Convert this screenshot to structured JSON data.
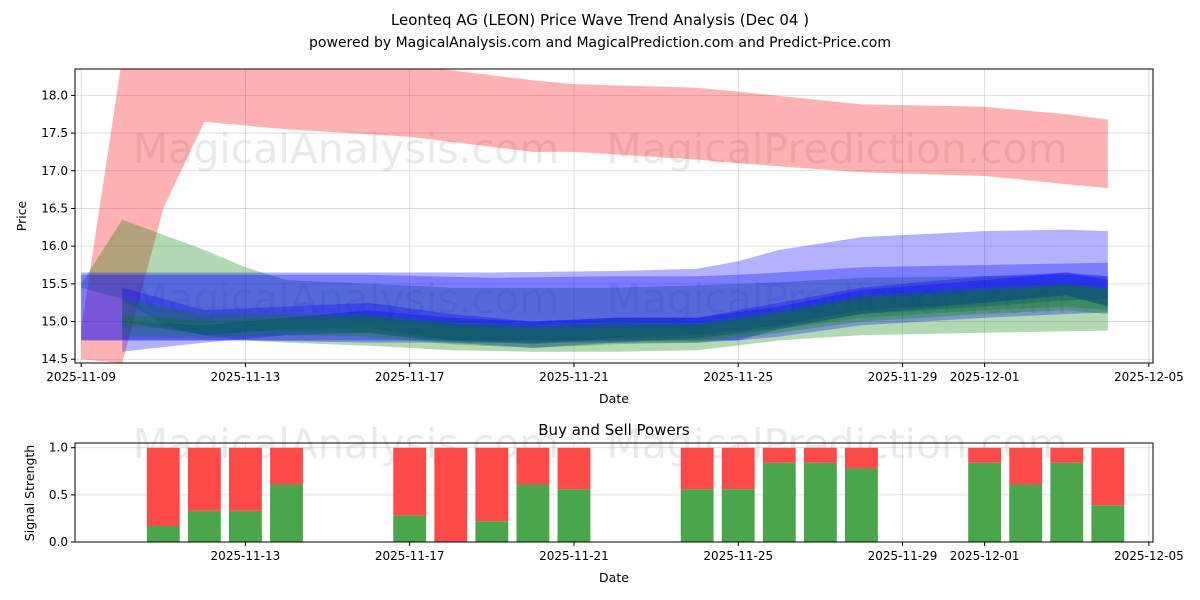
{
  "chart_data": [
    {
      "type": "area",
      "title": "Leonteq AG (LEON) Price Wave Trend Analysis (Dec 04 )",
      "subtitle": "powered by MagicalAnalysis.com and MagicalPrediction.com and Predict-Price.com",
      "xlabel": "Date",
      "ylabel": "Price",
      "xlim": [
        "2025-11-09",
        "2025-12-05"
      ],
      "ylim": [
        14.45,
        18.35
      ],
      "x_ticks": [
        "2025-11-09",
        "2025-11-13",
        "2025-11-17",
        "2025-11-21",
        "2025-11-25",
        "2025-11-29",
        "2025-12-01",
        "2025-12-05"
      ],
      "y_ticks": [
        14.5,
        15.0,
        15.5,
        16.0,
        16.5,
        17.0,
        17.5,
        18.0
      ],
      "watermarks": [
        "MagicalAnalysis.com",
        "MagicalPrediction.com"
      ],
      "series": [
        {
          "name": "red band",
          "color": "#ff0000",
          "opacity": 0.3,
          "x": [
            "2025-11-09",
            "2025-11-10",
            "2025-11-11",
            "2025-11-12",
            "2025-11-14",
            "2025-11-17",
            "2025-11-20",
            "2025-11-21",
            "2025-11-24",
            "2025-11-25",
            "2025-11-28",
            "2025-12-01",
            "2025-12-03",
            "2025-12-04"
          ],
          "upper": [
            14.9,
            18.5,
            18.5,
            18.5,
            18.45,
            18.4,
            18.2,
            18.15,
            18.1,
            18.05,
            17.88,
            17.85,
            17.75,
            17.68
          ],
          "lower": [
            14.5,
            14.45,
            16.5,
            17.65,
            17.55,
            17.45,
            17.25,
            17.25,
            17.15,
            17.1,
            16.98,
            16.93,
            16.82,
            16.77
          ]
        },
        {
          "name": "green wide band",
          "color": "#008000",
          "opacity": 0.3,
          "x": [
            "2025-11-09",
            "2025-11-10",
            "2025-11-11",
            "2025-11-12",
            "2025-11-13",
            "2025-11-14",
            "2025-11-16",
            "2025-11-18",
            "2025-11-20",
            "2025-11-22",
            "2025-11-24",
            "2025-11-26",
            "2025-11-28",
            "2025-12-01",
            "2025-12-03",
            "2025-12-04"
          ],
          "upper": [
            15.5,
            16.35,
            16.15,
            15.95,
            15.72,
            15.55,
            15.5,
            15.45,
            15.45,
            15.45,
            15.48,
            15.52,
            15.58,
            15.6,
            15.62,
            15.6
          ],
          "lower": [
            15.45,
            15.3,
            14.95,
            14.82,
            14.75,
            14.72,
            14.68,
            14.62,
            14.6,
            14.6,
            14.62,
            14.75,
            14.82,
            14.85,
            14.87,
            14.88
          ]
        },
        {
          "name": "blue wide band",
          "color": "#0000ff",
          "opacity": 0.3,
          "x": [
            "2025-11-09",
            "2025-11-11",
            "2025-11-13",
            "2025-11-16",
            "2025-11-19",
            "2025-11-22",
            "2025-11-24",
            "2025-11-25",
            "2025-11-26",
            "2025-11-28",
            "2025-12-01",
            "2025-12-03",
            "2025-12-04"
          ],
          "upper": [
            15.65,
            15.65,
            15.65,
            15.65,
            15.65,
            15.67,
            15.7,
            15.8,
            15.95,
            16.12,
            16.2,
            16.22,
            16.2
          ],
          "lower": [
            14.75,
            14.75,
            14.75,
            14.75,
            14.75,
            14.75,
            14.75,
            14.75,
            14.9,
            15.1,
            15.2,
            15.28,
            15.3
          ]
        },
        {
          "name": "blue band",
          "color": "#0000ff",
          "opacity": 0.3,
          "x": [
            "2025-11-09",
            "2025-11-11",
            "2025-11-13",
            "2025-11-16",
            "2025-11-19",
            "2025-11-22",
            "2025-11-24",
            "2025-11-25",
            "2025-11-26",
            "2025-11-28",
            "2025-12-01",
            "2025-12-03",
            "2025-12-04"
          ],
          "upper": [
            15.62,
            15.62,
            15.62,
            15.62,
            15.58,
            15.6,
            15.6,
            15.62,
            15.65,
            15.72,
            15.75,
            15.77,
            15.78
          ],
          "lower": [
            14.75,
            14.75,
            14.75,
            14.72,
            14.72,
            14.72,
            14.72,
            14.75,
            14.8,
            14.95,
            15.05,
            15.1,
            15.12
          ]
        },
        {
          "name": "blue wave 1",
          "color": "#0000ff",
          "opacity": 0.3,
          "x": [
            "2025-11-10",
            "2025-11-12",
            "2025-11-14",
            "2025-11-16",
            "2025-11-18",
            "2025-11-20",
            "2025-11-22",
            "2025-11-24",
            "2025-11-26",
            "2025-11-28",
            "2025-12-01",
            "2025-12-03",
            "2025-12-04"
          ],
          "upper": [
            15.45,
            15.15,
            15.2,
            15.25,
            15.1,
            15.0,
            15.05,
            15.05,
            15.2,
            15.42,
            15.55,
            15.65,
            15.6
          ],
          "lower": [
            15.0,
            14.82,
            14.9,
            14.92,
            14.75,
            14.7,
            14.78,
            14.82,
            14.95,
            15.15,
            15.25,
            15.35,
            15.2
          ]
        },
        {
          "name": "blue wave 2",
          "color": "#0000ff",
          "opacity": 0.3,
          "x": [
            "2025-11-10",
            "2025-11-12",
            "2025-11-14",
            "2025-11-16",
            "2025-11-18",
            "2025-11-20",
            "2025-11-22",
            "2025-11-24",
            "2025-11-26",
            "2025-11-28",
            "2025-12-01",
            "2025-12-03",
            "2025-12-04"
          ],
          "upper": [
            15.0,
            14.95,
            15.05,
            15.15,
            15.05,
            15.0,
            15.05,
            15.05,
            15.25,
            15.45,
            15.6,
            15.65,
            15.55
          ],
          "lower": [
            14.6,
            14.72,
            14.82,
            14.85,
            14.72,
            14.65,
            14.72,
            14.78,
            14.92,
            15.1,
            15.25,
            15.35,
            15.2
          ]
        },
        {
          "name": "green wave 1",
          "color": "#008000",
          "opacity": 0.3,
          "x": [
            "2025-11-10",
            "2025-11-12",
            "2025-11-14",
            "2025-11-16",
            "2025-11-18",
            "2025-11-20",
            "2025-11-22",
            "2025-11-24",
            "2025-11-26",
            "2025-11-28",
            "2025-12-01",
            "2025-12-03",
            "2025-12-04"
          ],
          "upper": [
            15.3,
            15.1,
            15.1,
            15.1,
            15.0,
            14.95,
            15.0,
            14.98,
            15.15,
            15.35,
            15.45,
            15.5,
            15.45
          ],
          "lower": [
            14.95,
            14.85,
            14.88,
            14.85,
            14.75,
            14.72,
            14.75,
            14.75,
            14.9,
            15.05,
            15.15,
            15.2,
            15.15
          ]
        },
        {
          "name": "green wave 2",
          "color": "#008000",
          "opacity": 0.3,
          "x": [
            "2025-11-10",
            "2025-11-12",
            "2025-11-14",
            "2025-11-16",
            "2025-11-18",
            "2025-11-20",
            "2025-11-22",
            "2025-11-24",
            "2025-11-26",
            "2025-11-28",
            "2025-12-01",
            "2025-12-03",
            "2025-12-04"
          ],
          "upper": [
            15.1,
            15.0,
            15.05,
            15.05,
            14.95,
            14.9,
            14.92,
            14.95,
            15.1,
            15.3,
            15.4,
            15.48,
            15.42
          ],
          "lower": [
            14.8,
            14.78,
            14.82,
            14.8,
            14.7,
            14.65,
            14.7,
            14.72,
            14.85,
            15.0,
            15.1,
            15.15,
            15.1
          ]
        }
      ]
    },
    {
      "type": "bar",
      "title": "Buy and Sell Powers",
      "xlabel": "Date",
      "ylabel": "Signal Strength",
      "xlim": [
        "2025-11-09",
        "2025-12-05"
      ],
      "ylim": [
        0,
        1.05
      ],
      "x_ticks": [
        "2025-11-13",
        "2025-11-17",
        "2025-11-21",
        "2025-11-25",
        "2025-11-29",
        "2025-12-01",
        "2025-12-05"
      ],
      "y_ticks": [
        0.0,
        0.5,
        1.0
      ],
      "watermarks": [
        "MagicalAnalysis.com",
        "MagicalPrediction.com"
      ],
      "buy_color": "#4aa64a",
      "sell_color": "#ff4a4a",
      "categories": [
        "2025-11-11",
        "2025-11-12",
        "2025-11-13",
        "2025-11-14",
        "2025-11-17",
        "2025-11-18",
        "2025-11-19",
        "2025-11-20",
        "2025-11-21",
        "2025-11-24",
        "2025-11-25",
        "2025-11-26",
        "2025-11-27",
        "2025-11-28",
        "2025-12-01",
        "2025-12-02",
        "2025-12-03",
        "2025-12-04"
      ],
      "series": [
        {
          "name": "Buy",
          "values": [
            0.17,
            0.33,
            0.33,
            0.61,
            0.28,
            0.0,
            0.22,
            0.61,
            0.56,
            0.56,
            0.56,
            0.84,
            0.84,
            0.78,
            0.84,
            0.61,
            0.84,
            0.39
          ]
        },
        {
          "name": "Sell",
          "values": [
            0.83,
            0.67,
            0.67,
            0.39,
            0.72,
            1.0,
            0.78,
            0.39,
            0.44,
            0.44,
            0.44,
            0.16,
            0.16,
            0.22,
            0.16,
            0.39,
            0.16,
            0.61
          ]
        }
      ]
    }
  ]
}
